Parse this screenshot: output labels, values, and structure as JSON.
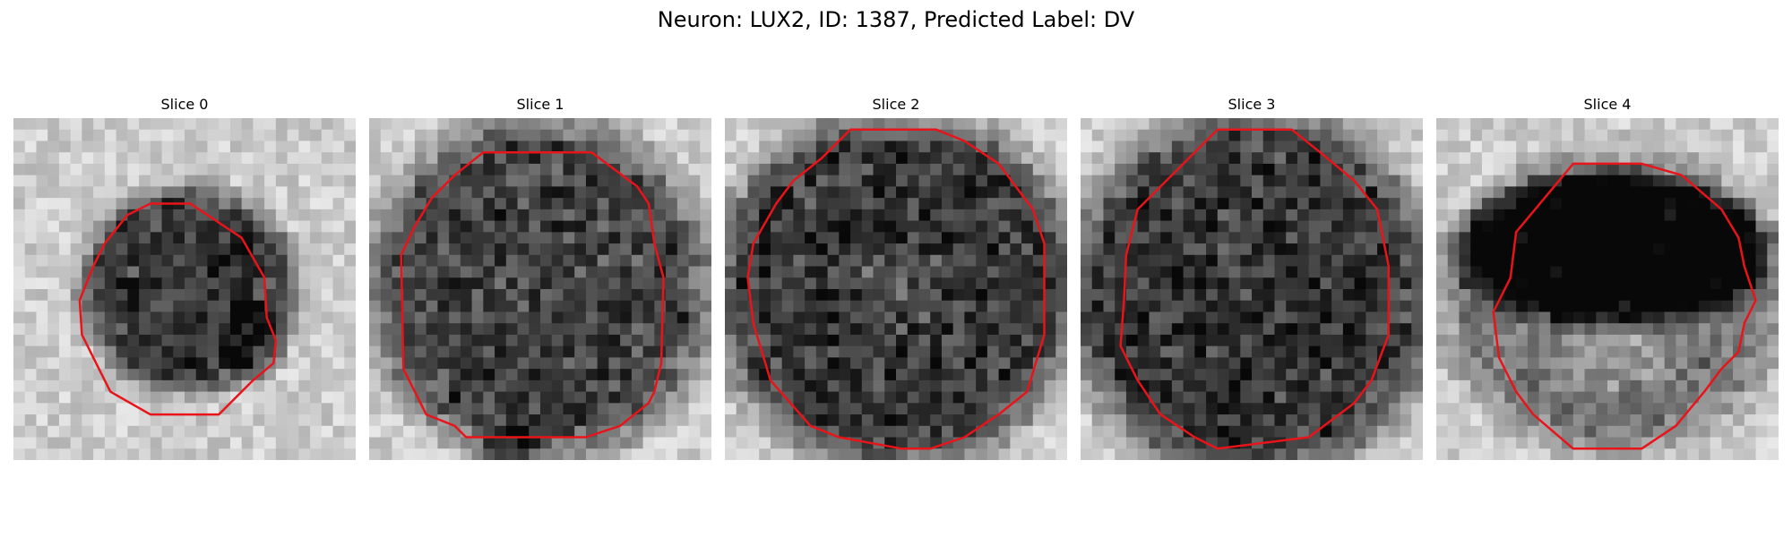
{
  "figure": {
    "title": "Neuron: LUX2, ID: 1387, Predicted Label: DV",
    "contour_color": "#e8141a"
  },
  "panels": [
    {
      "title": "Slice 0"
    },
    {
      "title": "Slice 1"
    },
    {
      "title": "Slice 2"
    },
    {
      "title": "Slice 3"
    },
    {
      "title": "Slice 4"
    }
  ]
}
